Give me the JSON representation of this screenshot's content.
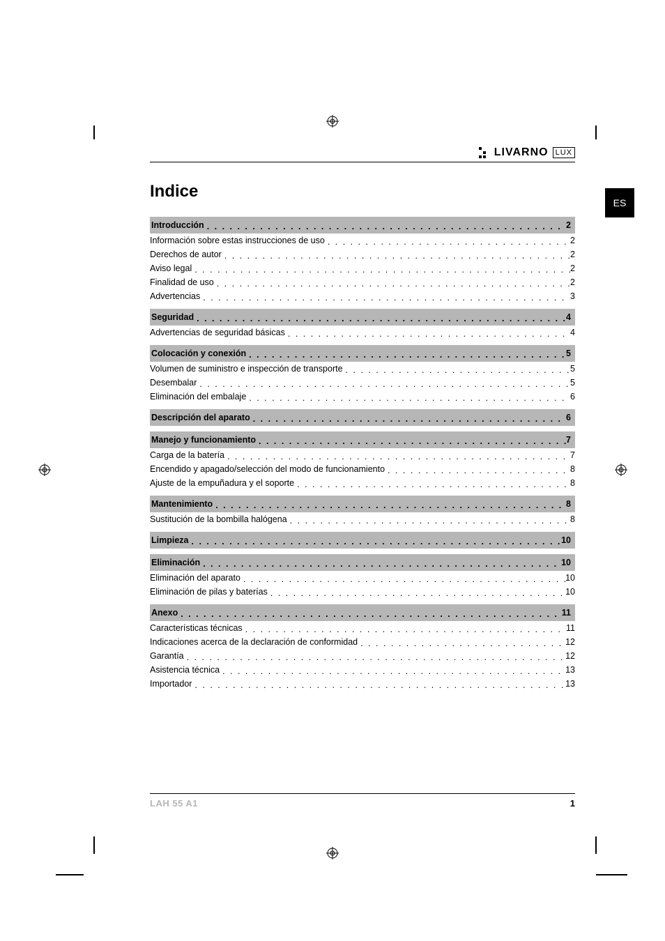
{
  "colors": {
    "background": "#ffffff",
    "text": "#000000",
    "section_bg": "#b6b6b6",
    "footer_model": "#b6b6b6",
    "lang_tab_bg": "#000000",
    "lang_tab_text": "#ffffff",
    "rule": "#000000"
  },
  "typography": {
    "title_size_pt": 24,
    "title_weight": 700,
    "body_size_pt": 12.5,
    "section_weight": 700,
    "footer_size_pt": 13,
    "font_family": "Arial"
  },
  "brand": {
    "name": "LIVARNO",
    "suffix": "LUX"
  },
  "language_tab": "ES",
  "title": "Indice",
  "footer": {
    "model": "LAH 55 A1",
    "page": "1"
  },
  "toc": [
    {
      "heading": "Introducción",
      "page": "2",
      "items": [
        {
          "label": "Información sobre estas instrucciones de uso",
          "page": "2"
        },
        {
          "label": "Derechos de autor",
          "page": "2"
        },
        {
          "label": "Aviso legal",
          "page": "2"
        },
        {
          "label": "Finalidad de uso",
          "page": "2"
        },
        {
          "label": "Advertencias",
          "page": "3"
        }
      ]
    },
    {
      "heading": "Seguridad",
      "page": "4",
      "items": [
        {
          "label": "Advertencias de seguridad básicas",
          "page": "4"
        }
      ]
    },
    {
      "heading": "Colocación y conexión",
      "page": "5",
      "items": [
        {
          "label": "Volumen de suministro e inspección de transporte",
          "page": "5"
        },
        {
          "label": "Desembalar",
          "page": "5"
        },
        {
          "label": "Eliminación del embalaje",
          "page": "6"
        }
      ]
    },
    {
      "heading": "Descripción del aparato",
      "page": "6",
      "items": []
    },
    {
      "heading": "Manejo y funcionamiento",
      "page": "7",
      "items": [
        {
          "label": "Carga de la batería",
          "page": "7"
        },
        {
          "label": "Encendido y apagado/selección del modo de funcionamiento",
          "page": "8"
        },
        {
          "label": "Ajuste de la empuñadura y el soporte",
          "page": "8"
        }
      ]
    },
    {
      "heading": "Mantenimiento",
      "page": "8",
      "items": [
        {
          "label": "Sustitución de la bombilla halógena",
          "page": "8"
        }
      ]
    },
    {
      "heading": "Limpieza",
      "page": "10",
      "items": []
    },
    {
      "heading": "Eliminación",
      "page": "10",
      "items": [
        {
          "label": "Eliminación del aparato",
          "page": "10"
        },
        {
          "label": "Eliminación de pilas y baterías",
          "page": "10"
        }
      ]
    },
    {
      "heading": "Anexo",
      "page": "11",
      "items": [
        {
          "label": "Características técnicas",
          "page": "11"
        },
        {
          "label": "Indicaciones acerca de la declaración de conformidad",
          "page": "12"
        },
        {
          "label": "Garantía",
          "page": "12"
        },
        {
          "label": "Asistencia técnica",
          "page": "13"
        },
        {
          "label": "Importador",
          "page": "13"
        }
      ]
    }
  ]
}
